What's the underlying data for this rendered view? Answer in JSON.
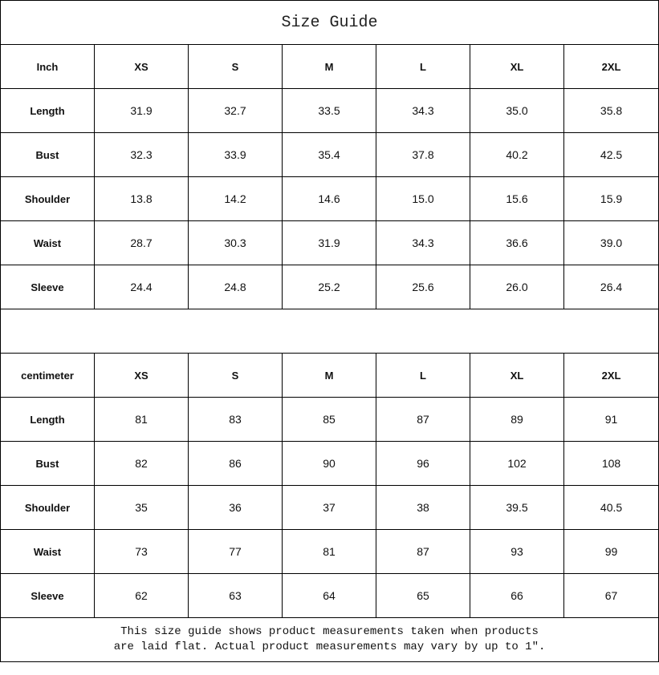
{
  "title": "Size Guide",
  "tables": [
    {
      "unit": "Inch",
      "sizes": [
        "XS",
        "S",
        "M",
        "L",
        "XL",
        "2XL"
      ],
      "rows": [
        {
          "label": "Length",
          "values": [
            "31.9",
            "32.7",
            "33.5",
            "34.3",
            "35.0",
            "35.8"
          ]
        },
        {
          "label": "Bust",
          "values": [
            "32.3",
            "33.9",
            "35.4",
            "37.8",
            "40.2",
            "42.5"
          ]
        },
        {
          "label": "Shoulder",
          "values": [
            "13.8",
            "14.2",
            "14.6",
            "15.0",
            "15.6",
            "15.9"
          ]
        },
        {
          "label": "Waist",
          "values": [
            "28.7",
            "30.3",
            "31.9",
            "34.3",
            "36.6",
            "39.0"
          ]
        },
        {
          "label": "Sleeve",
          "values": [
            "24.4",
            "24.8",
            "25.2",
            "25.6",
            "26.0",
            "26.4"
          ]
        }
      ]
    },
    {
      "unit": "centimeter",
      "sizes": [
        "XS",
        "S",
        "M",
        "L",
        "XL",
        "2XL"
      ],
      "rows": [
        {
          "label": "Length",
          "values": [
            "81",
            "83",
            "85",
            "87",
            "89",
            "91"
          ]
        },
        {
          "label": "Bust",
          "values": [
            "82",
            "86",
            "90",
            "96",
            "102",
            "108"
          ]
        },
        {
          "label": "Shoulder",
          "values": [
            "35",
            "36",
            "37",
            "38",
            "39.5",
            "40.5"
          ]
        },
        {
          "label": "Waist",
          "values": [
            "73",
            "77",
            "81",
            "87",
            "93",
            "99"
          ]
        },
        {
          "label": "Sleeve",
          "values": [
            "62",
            "63",
            "64",
            "65",
            "66",
            "67"
          ]
        }
      ]
    }
  ],
  "note_line1": "This size guide shows product measurements taken when products",
  "note_line2": "are laid flat. Actual product measurements may vary by up to 1″."
}
